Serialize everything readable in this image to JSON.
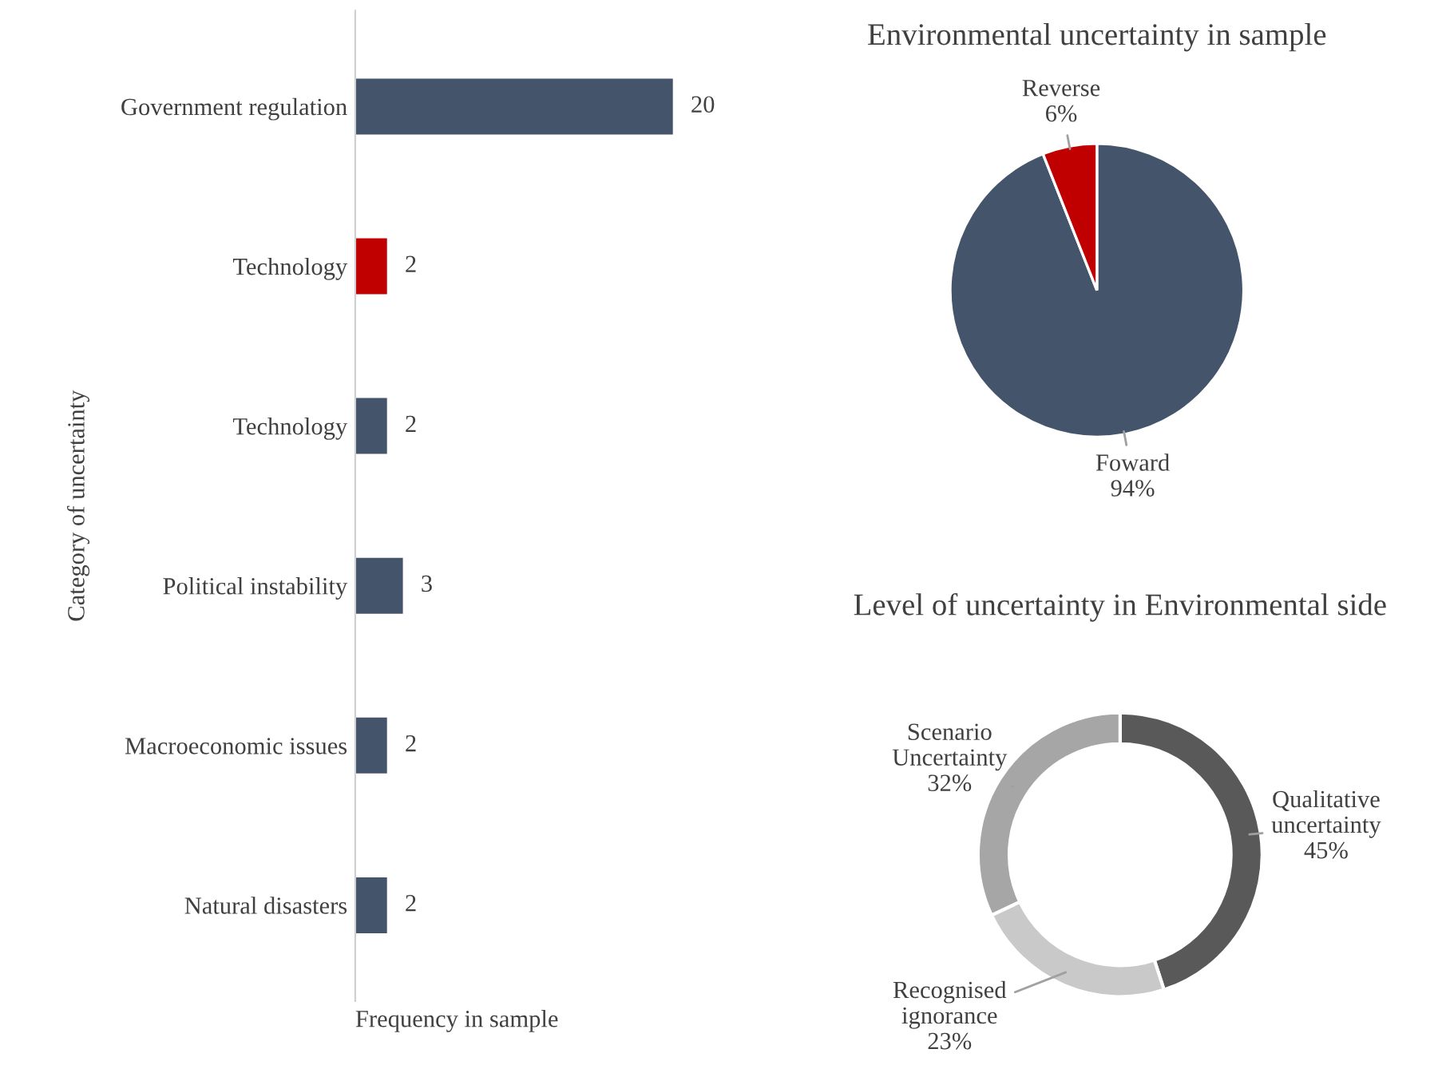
{
  "chart_data": [
    {
      "type": "bar",
      "orientation": "horizontal",
      "xlabel": "Frequency in sample",
      "ylabel": "Category of uncertainty",
      "categories": [
        "Government regulation",
        "Technology",
        "Technology",
        "Political instability",
        "Macroeconomic issues",
        "Natural disasters"
      ],
      "values": [
        20,
        2,
        2,
        3,
        2,
        2
      ],
      "colors": [
        "#44546a",
        "#c00000",
        "#44546a",
        "#44546a",
        "#44546a",
        "#44546a"
      ],
      "data_labels": true,
      "tick_labels": "y",
      "grid": false,
      "legend": false
    },
    {
      "type": "pie",
      "title": "Environmental uncertainty in sample",
      "categories": [
        "Foward",
        "Reverse"
      ],
      "values": [
        94,
        6
      ],
      "value_labels": [
        "94%",
        "6%"
      ],
      "colors": [
        "#44546a",
        "#c00000"
      ],
      "legend": false
    },
    {
      "type": "donut",
      "title": "Level of uncertainty in Environmental side",
      "categories": [
        "Qualitative\nuncertainty",
        "Recognised\nignorance",
        "Scenario\nUncertainty"
      ],
      "values": [
        45,
        23,
        32
      ],
      "value_labels": [
        "45%",
        "23%",
        "32%"
      ],
      "colors": [
        "#595959",
        "#c9c9c9",
        "#a6a6a6"
      ],
      "legend": false
    }
  ]
}
